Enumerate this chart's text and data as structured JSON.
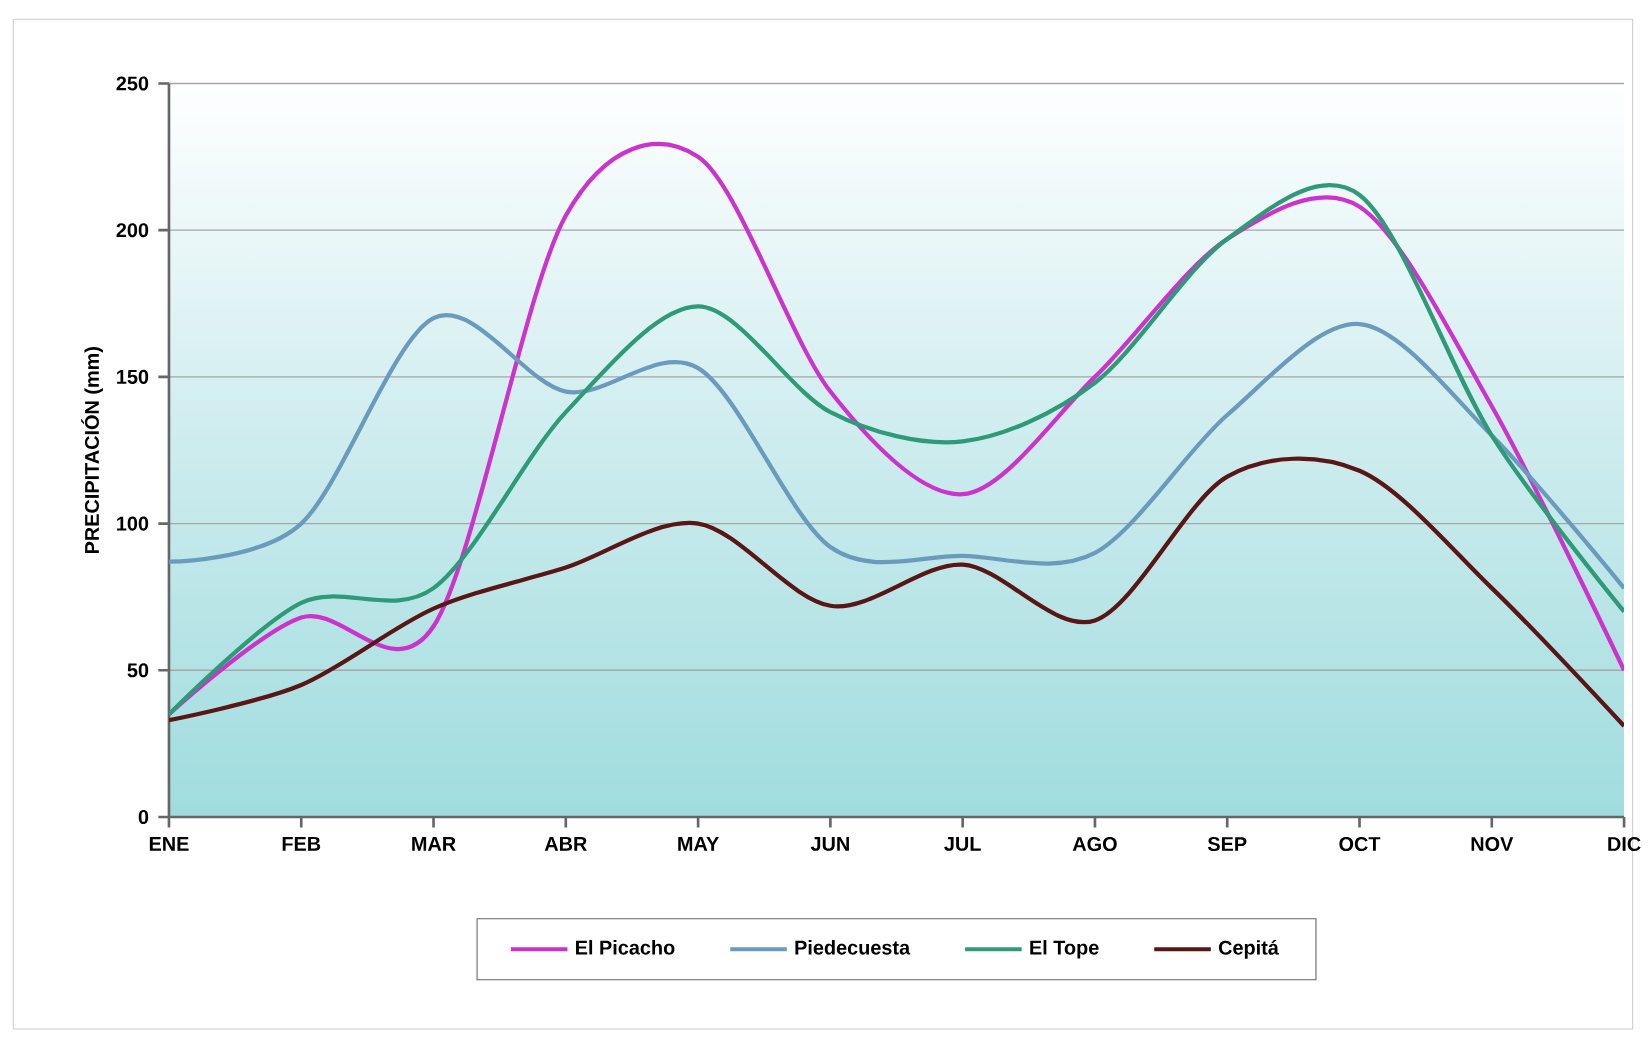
{
  "chart_data": {
    "type": "line",
    "ylabel": "PRECIPITACIÓN (mm)",
    "categories": [
      "ENE",
      "FEB",
      "MAR",
      "ABR",
      "MAY",
      "JUN",
      "JUL",
      "AGO",
      "SEP",
      "OCT",
      "NOV",
      "DIC"
    ],
    "series": [
      {
        "name": "El Picacho",
        "color": "#cc33cc",
        "values": [
          35,
          68,
          65,
          205,
          225,
          145,
          110,
          150,
          197,
          208,
          140,
          50
        ]
      },
      {
        "name": "Piedecuesta",
        "color": "#6a9bbd",
        "values": [
          87,
          100,
          170,
          145,
          153,
          92,
          89,
          90,
          137,
          168,
          130,
          78
        ]
      },
      {
        "name": "El Tope",
        "color": "#2e9a78",
        "values": [
          35,
          73,
          78,
          138,
          174,
          138,
          128,
          148,
          197,
          212,
          130,
          70
        ]
      },
      {
        "name": "Cepitá",
        "color": "#5a1515",
        "values": [
          33,
          45,
          71,
          85,
          100,
          72,
          86,
          67,
          116,
          118,
          78,
          31
        ]
      }
    ],
    "ylim": [
      0,
      250
    ],
    "yticks": [
      0,
      50,
      100,
      150,
      200,
      250
    ],
    "grid": "y",
    "legend": "bottom",
    "marker": "none",
    "line_style": "solid"
  }
}
